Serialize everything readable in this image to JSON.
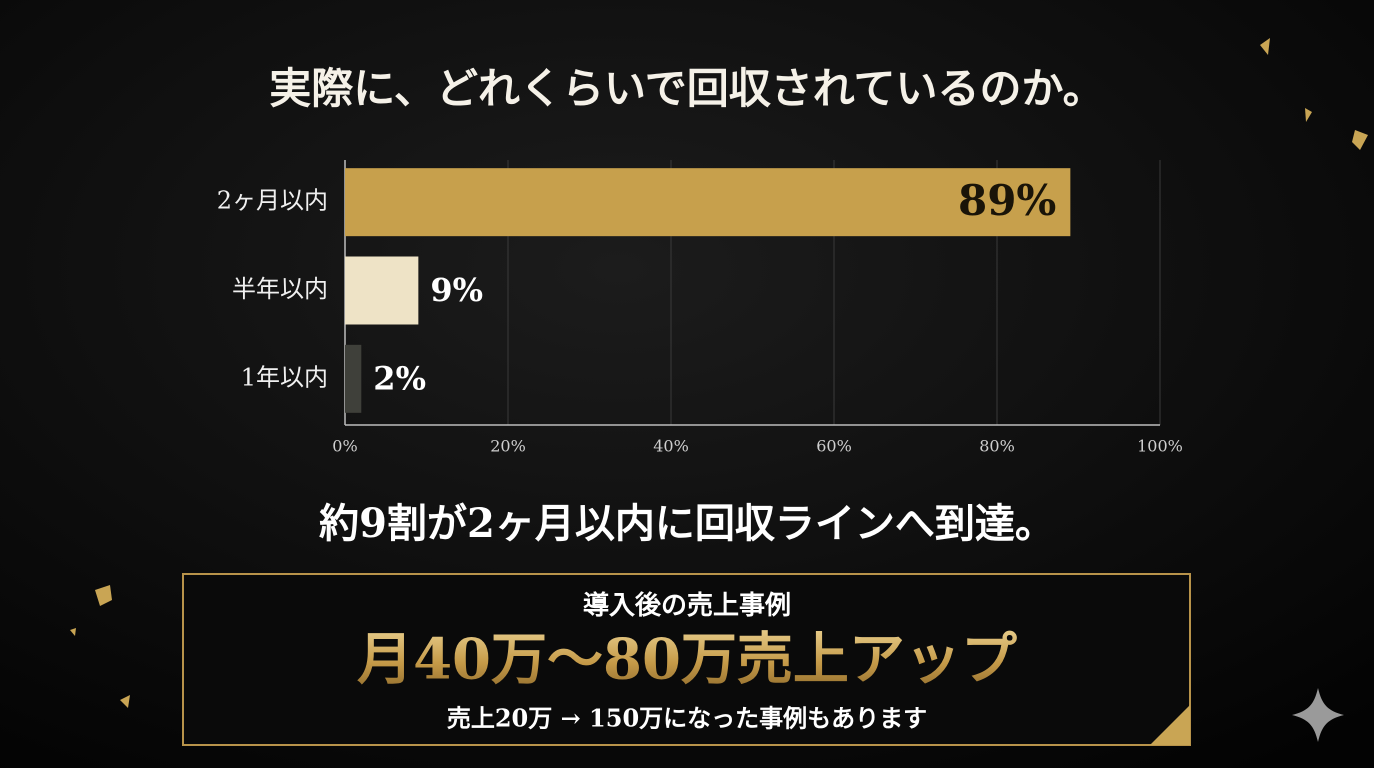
{
  "chart_data": {
    "type": "bar",
    "orientation": "horizontal",
    "title": "実際に、どれくらいで回収されているのか。",
    "categories": [
      "2ヶ月以内",
      "半年以内",
      "1年以内"
    ],
    "values": [
      89,
      9,
      2
    ],
    "value_labels": [
      "89%",
      "9%",
      "2%"
    ],
    "colors": [
      "#c7a04c",
      "#eee3c6",
      "#3f403a"
    ],
    "xlim": [
      0,
      100
    ],
    "xticks": [
      {
        "value": 0,
        "label": "0%"
      },
      {
        "value": 20,
        "label": "20%"
      },
      {
        "value": 40,
        "label": "40%"
      },
      {
        "value": 60,
        "label": "60%"
      },
      {
        "value": 80,
        "label": "80%"
      },
      {
        "value": 100,
        "label": "100%"
      }
    ],
    "grid": true
  },
  "summary": "約9割が2ヶ月以内に回収ラインへ到達。",
  "callout": {
    "heading": "導入後の売上事例",
    "main": "月40万〜80万売上アップ",
    "note": "売上20万 → 150万になった事例もあります"
  }
}
